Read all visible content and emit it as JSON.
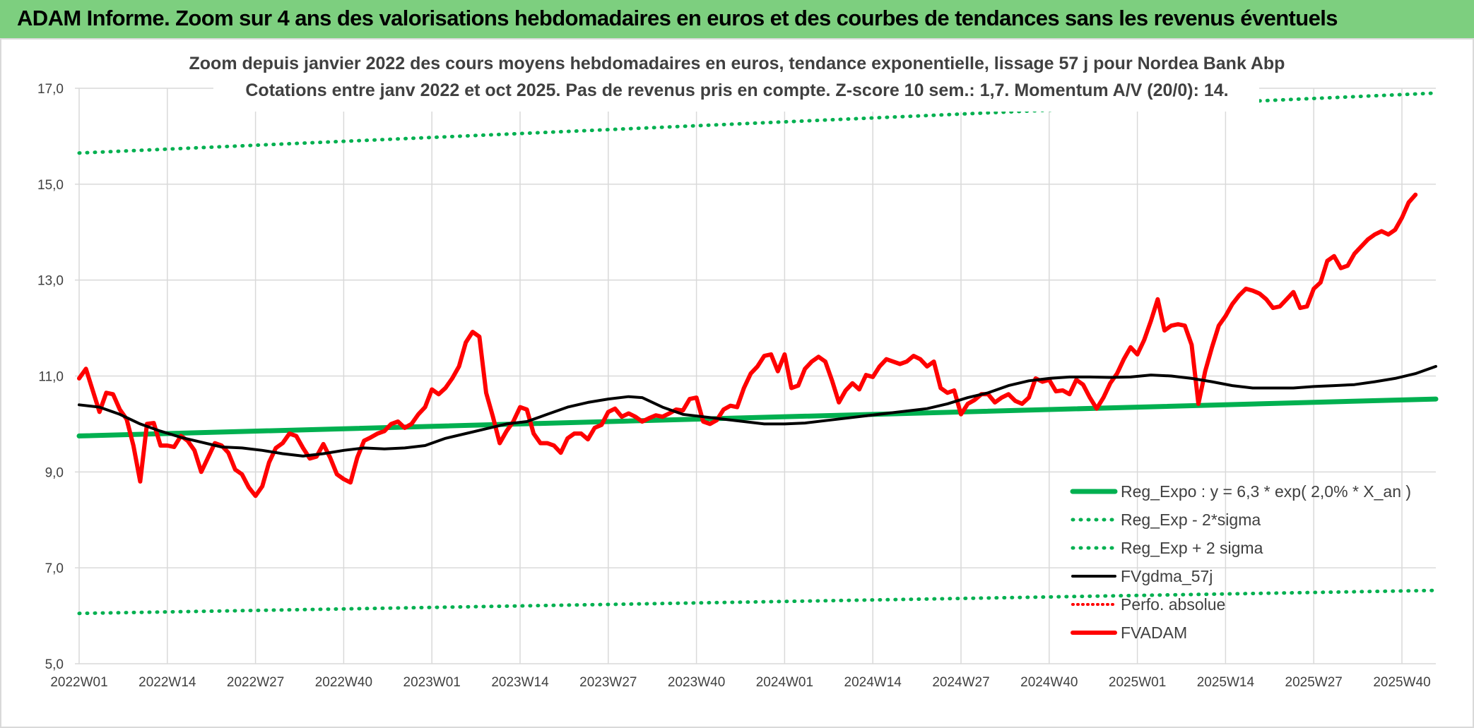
{
  "banner": {
    "title": "ADAM Informe. Zoom sur 4 ans des valorisations hebdomadaires en euros et des courbes de tendances sans les revenus éventuels"
  },
  "colors": {
    "banner_bg": "#7dcf7f",
    "trend": "#00b050",
    "band": "#00b050",
    "mma": "#000000",
    "price": "#ff0000",
    "perf": "#ff0000",
    "grid": "#d9d9d9"
  },
  "chart_data": {
    "type": "line",
    "title_lines": [
      "Zoom depuis janvier 2022 des cours moyens hebdomadaires en euros, tendance exponentielle, lissage 57 j pour Nordea Bank Abp",
      "Cotations entre janv 2022 et oct 2025. Pas de revenus pris en compte. Z-score 10 sem.: 1,7. Momentum A/V (20/0): 14."
    ],
    "ylim": [
      5,
      17
    ],
    "y_ticks": [
      "5,0",
      "7,0",
      "9,0",
      "11,0",
      "13,0",
      "15,0",
      "17,0"
    ],
    "x_ticks": [
      "2022W01",
      "2022W14",
      "2022W27",
      "2022W40",
      "2023W01",
      "2023W14",
      "2023W27",
      "2023W40",
      "2024W01",
      "2024W14",
      "2024W27",
      "2024W40",
      "2025W01",
      "2025W14",
      "2025W27",
      "2025W40"
    ],
    "x_range_weeks": [
      0,
      200
    ],
    "grid": true,
    "legend_position": "bottom-right",
    "series": [
      {
        "name": "Reg_Expo : y = 6,3 * exp( 2,0% *  X_an )",
        "style": "solid",
        "points": [
          [
            0,
            9.75
          ],
          [
            200,
            10.52
          ]
        ]
      },
      {
        "name": "Reg_Exp - 2*sigma",
        "style": "dotted",
        "points": [
          [
            0,
            6.05
          ],
          [
            200,
            6.53
          ]
        ]
      },
      {
        "name": "Reg_Exp + 2 sigma",
        "style": "dotted",
        "points": [
          [
            0,
            15.65
          ],
          [
            200,
            16.9
          ]
        ]
      },
      {
        "name": "FVgdma_57j",
        "style": "solid",
        "points": [
          [
            0,
            10.4
          ],
          [
            3,
            10.35
          ],
          [
            6,
            10.2
          ],
          [
            9,
            10.0
          ],
          [
            12,
            9.85
          ],
          [
            15,
            9.72
          ],
          [
            18,
            9.62
          ],
          [
            21,
            9.52
          ],
          [
            24,
            9.5
          ],
          [
            27,
            9.45
          ],
          [
            30,
            9.38
          ],
          [
            33,
            9.33
          ],
          [
            36,
            9.38
          ],
          [
            39,
            9.45
          ],
          [
            42,
            9.5
          ],
          [
            45,
            9.48
          ],
          [
            48,
            9.5
          ],
          [
            51,
            9.55
          ],
          [
            54,
            9.7
          ],
          [
            57,
            9.8
          ],
          [
            60,
            9.9
          ],
          [
            63,
            10.0
          ],
          [
            66,
            10.05
          ],
          [
            69,
            10.2
          ],
          [
            72,
            10.35
          ],
          [
            75,
            10.45
          ],
          [
            78,
            10.52
          ],
          [
            81,
            10.57
          ],
          [
            83,
            10.55
          ],
          [
            86,
            10.35
          ],
          [
            89,
            10.2
          ],
          [
            92,
            10.15
          ],
          [
            95,
            10.1
          ],
          [
            98,
            10.05
          ],
          [
            101,
            10.0
          ],
          [
            104,
            10.0
          ],
          [
            107,
            10.02
          ],
          [
            110,
            10.07
          ],
          [
            113,
            10.12
          ],
          [
            116,
            10.17
          ],
          [
            119,
            10.22
          ],
          [
            122,
            10.27
          ],
          [
            125,
            10.32
          ],
          [
            128,
            10.42
          ],
          [
            131,
            10.55
          ],
          [
            134,
            10.65
          ],
          [
            137,
            10.8
          ],
          [
            140,
            10.9
          ],
          [
            143,
            10.95
          ],
          [
            146,
            10.98
          ],
          [
            149,
            10.98
          ],
          [
            152,
            10.97
          ],
          [
            155,
            10.98
          ],
          [
            158,
            11.02
          ],
          [
            161,
            11.0
          ],
          [
            164,
            10.95
          ],
          [
            167,
            10.88
          ],
          [
            170,
            10.8
          ],
          [
            173,
            10.75
          ],
          [
            176,
            10.75
          ],
          [
            179,
            10.75
          ],
          [
            182,
            10.78
          ],
          [
            185,
            10.8
          ],
          [
            188,
            10.82
          ],
          [
            191,
            10.88
          ],
          [
            194,
            10.95
          ],
          [
            197,
            11.05
          ],
          [
            200,
            11.2
          ]
        ]
      },
      {
        "name": "Perfo. absolue",
        "style": "dotted",
        "points": []
      },
      {
        "name": "FVADAM",
        "style": "solid",
        "points": [
          [
            0,
            10.95
          ],
          [
            1,
            11.15
          ],
          [
            2,
            10.7
          ],
          [
            3,
            10.25
          ],
          [
            4,
            10.65
          ],
          [
            5,
            10.62
          ],
          [
            6,
            10.3
          ],
          [
            7,
            10.1
          ],
          [
            8,
            9.55
          ],
          [
            9,
            8.8
          ],
          [
            10,
            10.0
          ],
          [
            11,
            10.02
          ],
          [
            12,
            9.55
          ],
          [
            13,
            9.55
          ],
          [
            14,
            9.52
          ],
          [
            15,
            9.75
          ],
          [
            16,
            9.65
          ],
          [
            17,
            9.45
          ],
          [
            18,
            9.0
          ],
          [
            19,
            9.3
          ],
          [
            20,
            9.6
          ],
          [
            21,
            9.55
          ],
          [
            22,
            9.4
          ],
          [
            23,
            9.05
          ],
          [
            24,
            8.95
          ],
          [
            25,
            8.68
          ],
          [
            26,
            8.5
          ],
          [
            27,
            8.7
          ],
          [
            28,
            9.2
          ],
          [
            29,
            9.5
          ],
          [
            30,
            9.6
          ],
          [
            31,
            9.8
          ],
          [
            32,
            9.75
          ],
          [
            33,
            9.5
          ],
          [
            34,
            9.28
          ],
          [
            35,
            9.32
          ],
          [
            36,
            9.58
          ],
          [
            37,
            9.3
          ],
          [
            38,
            8.95
          ],
          [
            39,
            8.85
          ],
          [
            40,
            8.78
          ],
          [
            41,
            9.3
          ],
          [
            42,
            9.65
          ],
          [
            43,
            9.72
          ],
          [
            44,
            9.8
          ],
          [
            45,
            9.85
          ],
          [
            46,
            10.0
          ],
          [
            47,
            10.05
          ],
          [
            48,
            9.92
          ],
          [
            49,
            10.0
          ],
          [
            50,
            10.2
          ],
          [
            51,
            10.35
          ],
          [
            52,
            10.72
          ],
          [
            53,
            10.62
          ],
          [
            54,
            10.75
          ],
          [
            55,
            10.95
          ],
          [
            56,
            11.2
          ],
          [
            57,
            11.7
          ],
          [
            58,
            11.92
          ],
          [
            59,
            11.82
          ],
          [
            60,
            10.65
          ],
          [
            61,
            10.15
          ],
          [
            62,
            9.6
          ],
          [
            63,
            9.85
          ],
          [
            64,
            10.05
          ],
          [
            65,
            10.35
          ],
          [
            66,
            10.3
          ],
          [
            67,
            9.8
          ],
          [
            68,
            9.6
          ],
          [
            69,
            9.6
          ],
          [
            70,
            9.55
          ],
          [
            71,
            9.4
          ],
          [
            72,
            9.7
          ],
          [
            73,
            9.8
          ],
          [
            74,
            9.8
          ],
          [
            75,
            9.68
          ],
          [
            76,
            9.92
          ],
          [
            77,
            9.98
          ],
          [
            78,
            10.25
          ],
          [
            79,
            10.32
          ],
          [
            80,
            10.15
          ],
          [
            81,
            10.22
          ],
          [
            82,
            10.15
          ],
          [
            83,
            10.05
          ],
          [
            84,
            10.12
          ],
          [
            85,
            10.18
          ],
          [
            86,
            10.15
          ],
          [
            87,
            10.22
          ],
          [
            88,
            10.3
          ],
          [
            89,
            10.28
          ],
          [
            90,
            10.52
          ],
          [
            91,
            10.55
          ],
          [
            92,
            10.05
          ],
          [
            93,
            10.0
          ],
          [
            94,
            10.08
          ],
          [
            95,
            10.3
          ],
          [
            96,
            10.38
          ],
          [
            97,
            10.35
          ],
          [
            98,
            10.75
          ],
          [
            99,
            11.05
          ],
          [
            100,
            11.2
          ],
          [
            101,
            11.42
          ],
          [
            102,
            11.45
          ],
          [
            103,
            11.1
          ],
          [
            104,
            11.45
          ],
          [
            105,
            10.75
          ],
          [
            106,
            10.8
          ],
          [
            107,
            11.15
          ],
          [
            108,
            11.3
          ],
          [
            109,
            11.4
          ],
          [
            110,
            11.3
          ],
          [
            111,
            10.9
          ],
          [
            112,
            10.45
          ],
          [
            113,
            10.7
          ],
          [
            114,
            10.85
          ],
          [
            115,
            10.72
          ],
          [
            116,
            11.02
          ],
          [
            117,
            10.98
          ],
          [
            118,
            11.2
          ],
          [
            119,
            11.35
          ],
          [
            120,
            11.3
          ],
          [
            121,
            11.25
          ],
          [
            122,
            11.3
          ],
          [
            123,
            11.42
          ],
          [
            124,
            11.35
          ],
          [
            125,
            11.2
          ],
          [
            126,
            11.3
          ],
          [
            127,
            10.75
          ],
          [
            128,
            10.65
          ],
          [
            129,
            10.7
          ],
          [
            130,
            10.2
          ],
          [
            131,
            10.42
          ],
          [
            132,
            10.5
          ],
          [
            133,
            10.62
          ],
          [
            134,
            10.62
          ],
          [
            135,
            10.45
          ],
          [
            136,
            10.55
          ],
          [
            137,
            10.62
          ],
          [
            138,
            10.48
          ],
          [
            139,
            10.42
          ],
          [
            140,
            10.55
          ],
          [
            141,
            10.95
          ],
          [
            142,
            10.88
          ],
          [
            143,
            10.92
          ],
          [
            144,
            10.68
          ],
          [
            145,
            10.7
          ],
          [
            146,
            10.62
          ],
          [
            147,
            10.92
          ],
          [
            148,
            10.82
          ],
          [
            149,
            10.55
          ],
          [
            150,
            10.32
          ],
          [
            151,
            10.55
          ],
          [
            152,
            10.85
          ],
          [
            153,
            11.05
          ],
          [
            154,
            11.35
          ],
          [
            155,
            11.6
          ],
          [
            156,
            11.45
          ],
          [
            157,
            11.75
          ],
          [
            158,
            12.15
          ],
          [
            159,
            12.6
          ],
          [
            160,
            11.95
          ],
          [
            161,
            12.05
          ],
          [
            162,
            12.08
          ],
          [
            163,
            12.05
          ],
          [
            164,
            11.65
          ],
          [
            165,
            10.42
          ],
          [
            166,
            11.1
          ],
          [
            167,
            11.6
          ],
          [
            168,
            12.05
          ],
          [
            169,
            12.25
          ],
          [
            170,
            12.5
          ],
          [
            171,
            12.68
          ],
          [
            172,
            12.82
          ],
          [
            173,
            12.78
          ],
          [
            174,
            12.72
          ],
          [
            175,
            12.6
          ],
          [
            176,
            12.42
          ],
          [
            177,
            12.45
          ],
          [
            178,
            12.6
          ],
          [
            179,
            12.75
          ],
          [
            180,
            12.42
          ],
          [
            181,
            12.45
          ],
          [
            182,
            12.82
          ],
          [
            183,
            12.95
          ],
          [
            184,
            13.4
          ],
          [
            185,
            13.5
          ],
          [
            186,
            13.25
          ],
          [
            187,
            13.3
          ],
          [
            188,
            13.55
          ],
          [
            189,
            13.7
          ],
          [
            190,
            13.85
          ],
          [
            191,
            13.95
          ],
          [
            192,
            14.02
          ],
          [
            193,
            13.95
          ],
          [
            194,
            14.05
          ],
          [
            195,
            14.3
          ],
          [
            196,
            14.62
          ],
          [
            197,
            14.78
          ]
        ]
      }
    ]
  }
}
